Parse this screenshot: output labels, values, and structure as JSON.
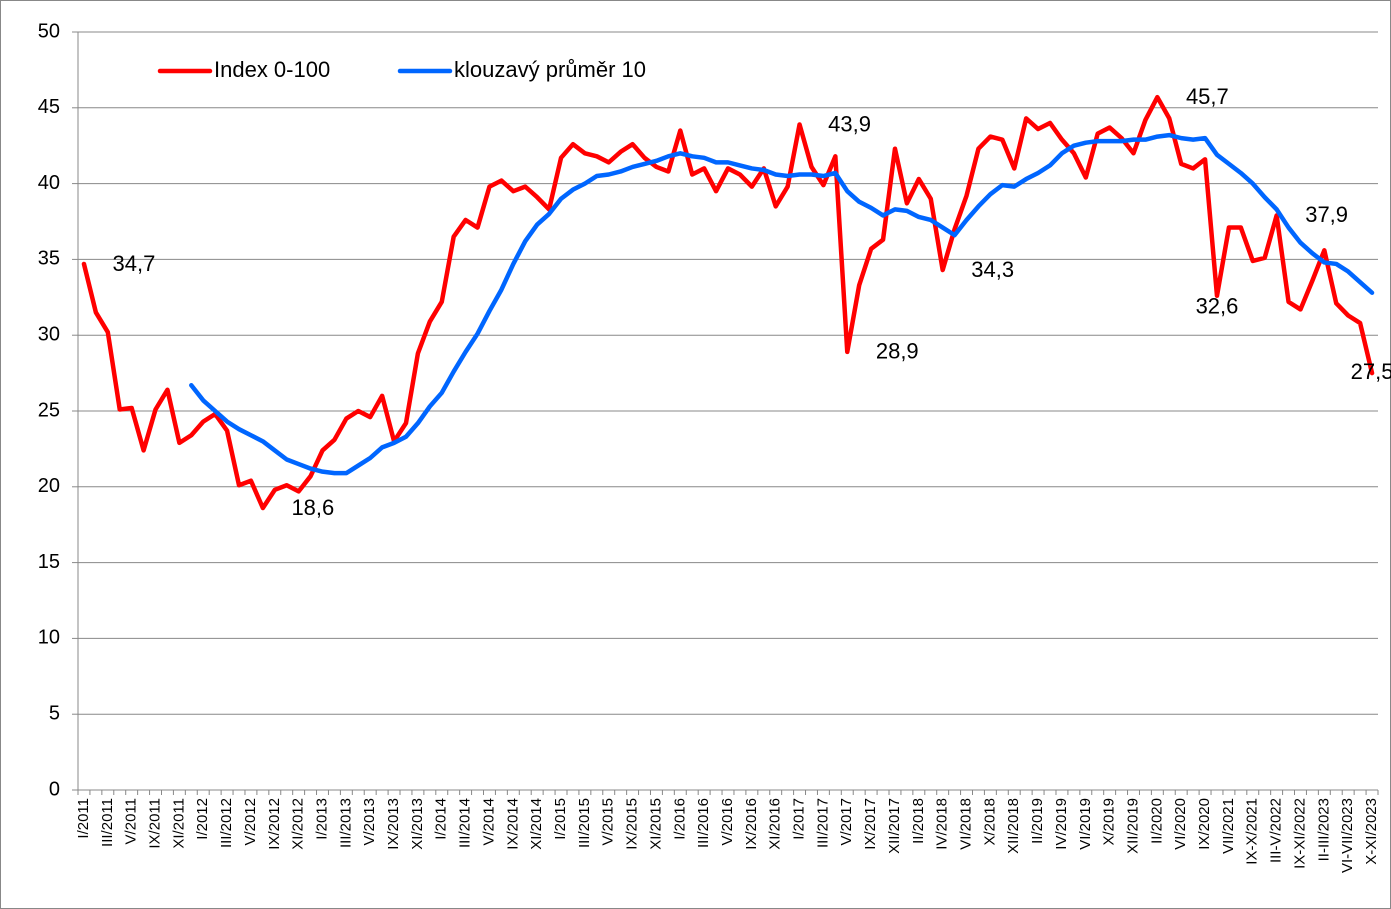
{
  "chart_data": {
    "type": "line",
    "categories": [
      "I/2011",
      null,
      "III/2011",
      null,
      "V/2011",
      null,
      "IX/2011",
      null,
      "XI/2011",
      null,
      "I/2012",
      null,
      "III/2012",
      null,
      "V/2012",
      null,
      "IX/2012",
      null,
      "XI/2012",
      null,
      "I/2013",
      null,
      "III/2013",
      null,
      "V/2013",
      null,
      "IX/2013",
      null,
      "XI/2013",
      null,
      "I/2014",
      null,
      "III/2014",
      null,
      "V/2014",
      null,
      "IX/2014",
      null,
      "XI/2014",
      null,
      "I/2015",
      null,
      "III/2015",
      null,
      "V/2015",
      null,
      "IX/2015",
      null,
      "XI/2015",
      null,
      "I/2016",
      null,
      "III/2016",
      null,
      "V/2016",
      null,
      "IX/2016",
      null,
      "XI/2016",
      null,
      "I/2017",
      null,
      "III/2017",
      null,
      "V/2017",
      null,
      "IX/2017",
      null,
      "XII/2017",
      null,
      "II/2018",
      null,
      "IV/2018",
      null,
      "VI/2018",
      null,
      "X/2018",
      null,
      "XII/2018",
      null,
      "II/2019",
      null,
      "IV/2019",
      null,
      "VI/2019",
      null,
      "X/2019",
      null,
      "XII/2019",
      null,
      "II/2020",
      null,
      "VI/2020",
      null,
      "IX/2020",
      null,
      "VII/2021",
      null,
      "IX-X/2021",
      null,
      "III-V/2022",
      null,
      "IX-XI/2022",
      null,
      "II-III/2023",
      null,
      "VI-VII/2023",
      null,
      "X-XI/2023"
    ],
    "series": [
      {
        "name": "Index 0-100",
        "color": "#ff0000",
        "values": [
          34.7,
          31.5,
          30.2,
          25.1,
          25.2,
          22.4,
          25.1,
          26.4,
          22.9,
          23.4,
          24.3,
          24.8,
          23.7,
          20.1,
          20.4,
          18.6,
          19.8,
          20.1,
          19.7,
          20.7,
          22.4,
          23.1,
          24.5,
          25.0,
          24.6,
          26.0,
          23.0,
          24.2,
          28.8,
          30.9,
          32.2,
          36.5,
          37.6,
          37.1,
          39.8,
          40.2,
          39.5,
          39.8,
          39.1,
          38.3,
          41.7,
          42.6,
          42.0,
          41.8,
          41.4,
          42.1,
          42.6,
          41.7,
          41.1,
          40.8,
          43.5,
          40.6,
          41.0,
          39.5,
          41.0,
          40.6,
          39.8,
          41.0,
          38.5,
          39.8,
          43.9,
          41.1,
          39.9,
          41.8,
          28.9,
          33.3,
          35.7,
          36.3,
          42.3,
          38.7,
          40.3,
          39.0,
          34.3,
          37.0,
          39.2,
          42.3,
          43.1,
          42.9,
          41.0,
          44.3,
          43.6,
          44.0,
          42.9,
          42.0,
          40.4,
          43.3,
          43.7,
          43.0,
          42.0,
          44.2,
          45.7,
          44.3,
          41.3,
          41.0,
          41.6,
          32.6,
          37.1,
          37.1,
          34.9,
          35.1,
          37.9,
          32.2,
          31.7,
          33.6,
          35.6,
          32.1,
          31.3,
          30.8,
          27.5
        ],
        "value_labels": [
          "34,7",
          null,
          null,
          null,
          null,
          null,
          null,
          null,
          null,
          null,
          null,
          null,
          null,
          null,
          null,
          "18,6",
          null,
          null,
          null,
          null,
          null,
          null,
          null,
          null,
          null,
          null,
          null,
          null,
          null,
          null,
          null,
          null,
          null,
          null,
          null,
          null,
          null,
          null,
          null,
          null,
          null,
          null,
          null,
          null,
          null,
          null,
          null,
          null,
          null,
          null,
          null,
          null,
          null,
          null,
          null,
          null,
          null,
          null,
          null,
          null,
          "43,9",
          null,
          null,
          null,
          "28,9",
          null,
          null,
          null,
          null,
          null,
          null,
          null,
          "34,3",
          null,
          null,
          null,
          null,
          null,
          null,
          null,
          null,
          null,
          null,
          null,
          null,
          null,
          null,
          null,
          null,
          null,
          "45,7",
          null,
          null,
          null,
          null,
          "32,6",
          null,
          null,
          null,
          null,
          "37,9",
          null,
          null,
          null,
          null,
          null,
          null,
          null,
          "27,5"
        ]
      },
      {
        "name": "klouzavý průměr 10",
        "color": "#0066ff",
        "values": [
          null,
          null,
          null,
          null,
          null,
          null,
          null,
          null,
          null,
          26.7,
          25.7,
          25.0,
          24.3,
          23.8,
          23.4,
          23.0,
          22.4,
          21.8,
          21.5,
          21.2,
          21.0,
          20.9,
          20.9,
          21.4,
          21.9,
          22.6,
          22.9,
          23.3,
          24.2,
          25.3,
          26.2,
          27.6,
          28.9,
          30.1,
          31.6,
          33.0,
          34.7,
          36.2,
          37.3,
          38.0,
          39.0,
          39.6,
          40.0,
          40.5,
          40.6,
          40.8,
          41.1,
          41.3,
          41.5,
          41.8,
          42.0,
          41.8,
          41.7,
          41.4,
          41.4,
          41.2,
          41.0,
          40.9,
          40.6,
          40.5,
          40.6,
          40.6,
          40.5,
          40.7,
          39.5,
          38.8,
          38.4,
          37.9,
          38.3,
          38.2,
          37.8,
          37.6,
          37.1,
          36.6,
          37.6,
          38.5,
          39.3,
          39.9,
          39.8,
          40.3,
          40.7,
          41.2,
          42.0,
          42.5,
          42.7,
          42.8,
          42.8,
          42.8,
          42.9,
          42.9,
          43.1,
          43.2,
          43.0,
          42.9,
          43.0,
          41.9,
          41.3,
          40.7,
          40.0,
          39.1,
          38.3,
          37.1,
          36.1,
          35.4,
          34.8,
          34.7,
          34.2,
          33.5,
          32.8
        ]
      }
    ],
    "ylim": [
      0,
      50
    ],
    "yticks": [
      0,
      5,
      10,
      15,
      20,
      25,
      30,
      35,
      40,
      45,
      50
    ],
    "grid": true,
    "legend": "top-left"
  }
}
